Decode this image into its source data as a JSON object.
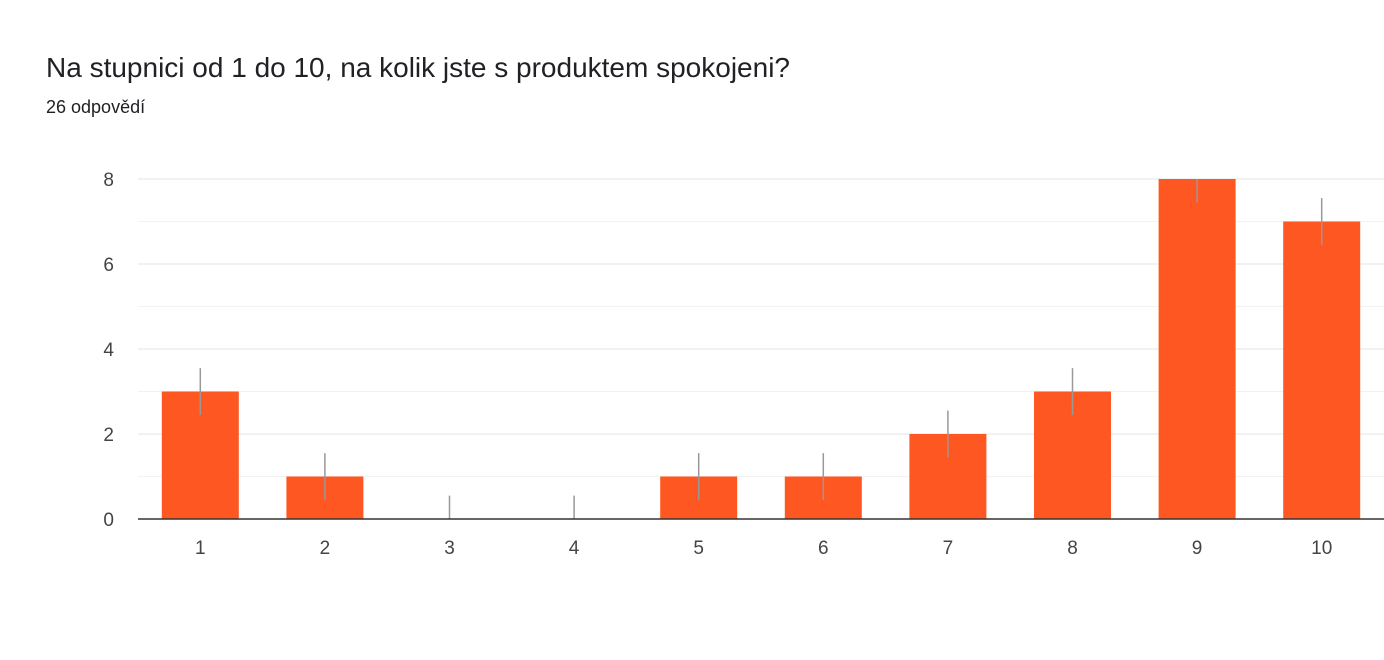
{
  "question": {
    "title": "Na stupnici od 1 do 10, na kolik jste s produktem spokojeni?",
    "responses": "26 odpovědí"
  },
  "colors": {
    "bar": "#ff5722",
    "gridline": "#ebebeb",
    "baseline": "#333333",
    "error_bar": "#999999",
    "text": "#202124",
    "tick_text": "#444444"
  },
  "chart_data": {
    "type": "bar",
    "categories": [
      "1",
      "2",
      "3",
      "4",
      "5",
      "6",
      "7",
      "8",
      "9",
      "10"
    ],
    "values": [
      3,
      1,
      0,
      0,
      1,
      1,
      2,
      3,
      8,
      7
    ],
    "error_bar": 0.55,
    "ylim": [
      0,
      8
    ],
    "yticks": [
      0,
      2,
      4,
      6,
      8
    ],
    "grid": true,
    "legend": "none"
  }
}
